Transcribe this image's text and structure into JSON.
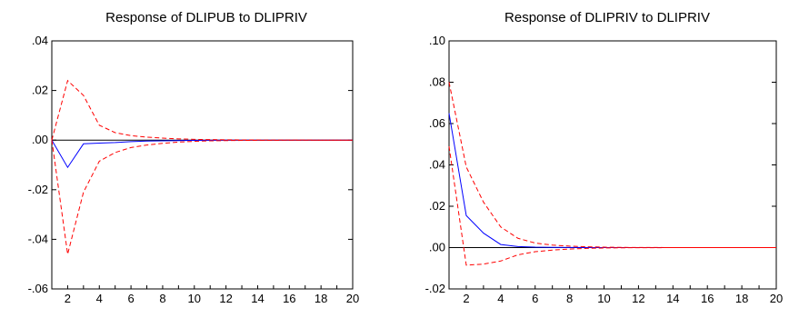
{
  "chart_data": [
    {
      "type": "line",
      "title": "Response of DLIPUB to DLIPRIV",
      "xlabel": "",
      "ylabel": "",
      "x": [
        1,
        2,
        3,
        4,
        5,
        6,
        7,
        8,
        9,
        10,
        11,
        12,
        13,
        14,
        15,
        16,
        17,
        18,
        19,
        20
      ],
      "xlim": [
        1,
        20
      ],
      "ylim": [
        -0.06,
        0.04
      ],
      "xticks": [
        2,
        4,
        6,
        8,
        10,
        12,
        14,
        16,
        18,
        20
      ],
      "xtick_labels": [
        "2",
        "4",
        "6",
        "8",
        "10",
        "12",
        "14",
        "16",
        "18",
        "20"
      ],
      "yticks": [
        -0.06,
        -0.04,
        -0.02,
        0.0,
        0.02,
        0.04
      ],
      "ytick_labels": [
        "-.06",
        "-.04",
        "-.02",
        ".00",
        ".02",
        ".04"
      ],
      "zero_line": true,
      "grid": false,
      "legend": "none",
      "series": [
        {
          "role": "response",
          "color": "#0000ff",
          "style": "solid",
          "values": [
            0.0,
            -0.011,
            -0.0015,
            -0.0012,
            -0.001,
            -0.0006,
            -0.0004,
            -0.0003,
            -0.0002,
            -0.0001,
            -5e-05,
            -3e-05,
            -2e-05,
            -1e-05,
            0,
            0,
            0,
            0,
            0,
            0
          ]
        },
        {
          "role": "upper",
          "color": "#ff0000",
          "style": "dashed",
          "values": [
            0.0,
            0.024,
            0.018,
            0.006,
            0.003,
            0.0018,
            0.0012,
            0.0008,
            0.0005,
            0.0003,
            0.0002,
            0.00012,
            8e-05,
            5e-05,
            3e-05,
            2e-05,
            1e-05,
            0,
            0,
            0
          ]
        },
        {
          "role": "lower",
          "color": "#ff0000",
          "style": "dashed",
          "values": [
            0.0,
            -0.046,
            -0.021,
            -0.0085,
            -0.005,
            -0.003,
            -0.002,
            -0.0013,
            -0.0008,
            -0.0005,
            -0.0003,
            -0.0002,
            -0.00012,
            -8e-05,
            -5e-05,
            -3e-05,
            -2e-05,
            -1e-05,
            0,
            0
          ]
        }
      ]
    },
    {
      "type": "line",
      "title": "Response of DLIPRIV to DLIPRIV",
      "xlabel": "",
      "ylabel": "",
      "x": [
        1,
        2,
        3,
        4,
        5,
        6,
        7,
        8,
        9,
        10,
        11,
        12,
        13,
        14,
        15,
        16,
        17,
        18,
        19,
        20
      ],
      "xlim": [
        1,
        20
      ],
      "ylim": [
        -0.02,
        0.1
      ],
      "xticks": [
        2,
        4,
        6,
        8,
        10,
        12,
        14,
        16,
        18,
        20
      ],
      "xtick_labels": [
        "2",
        "4",
        "6",
        "8",
        "10",
        "12",
        "14",
        "16",
        "18",
        "20"
      ],
      "yticks": [
        -0.02,
        0.0,
        0.02,
        0.04,
        0.06,
        0.08,
        0.1
      ],
      "ytick_labels": [
        "-.02",
        ".00",
        ".02",
        ".04",
        ".06",
        ".08",
        ".10"
      ],
      "zero_line": true,
      "grid": false,
      "legend": "none",
      "series": [
        {
          "role": "response",
          "color": "#0000ff",
          "style": "solid",
          "values": [
            0.065,
            0.0155,
            0.007,
            0.0015,
            0.0005,
            0.0002,
            0.0001,
            5e-05,
            2e-05,
            1e-05,
            0,
            0,
            0,
            0,
            0,
            0,
            0,
            0,
            0,
            0
          ]
        },
        {
          "role": "upper",
          "color": "#ff0000",
          "style": "dashed",
          "values": [
            0.08,
            0.039,
            0.022,
            0.01,
            0.0045,
            0.0022,
            0.0012,
            0.0007,
            0.0004,
            0.0002,
            0.0001,
            5e-05,
            3e-05,
            2e-05,
            1e-05,
            0,
            0,
            0,
            0,
            0
          ]
        },
        {
          "role": "lower",
          "color": "#ff0000",
          "style": "dashed",
          "values": [
            0.049,
            -0.0085,
            -0.008,
            -0.0065,
            -0.0035,
            -0.002,
            -0.0012,
            -0.0007,
            -0.0004,
            -0.0002,
            -0.0001,
            -5e-05,
            -3e-05,
            -2e-05,
            -1e-05,
            0,
            0,
            0,
            0,
            0
          ]
        }
      ]
    }
  ]
}
